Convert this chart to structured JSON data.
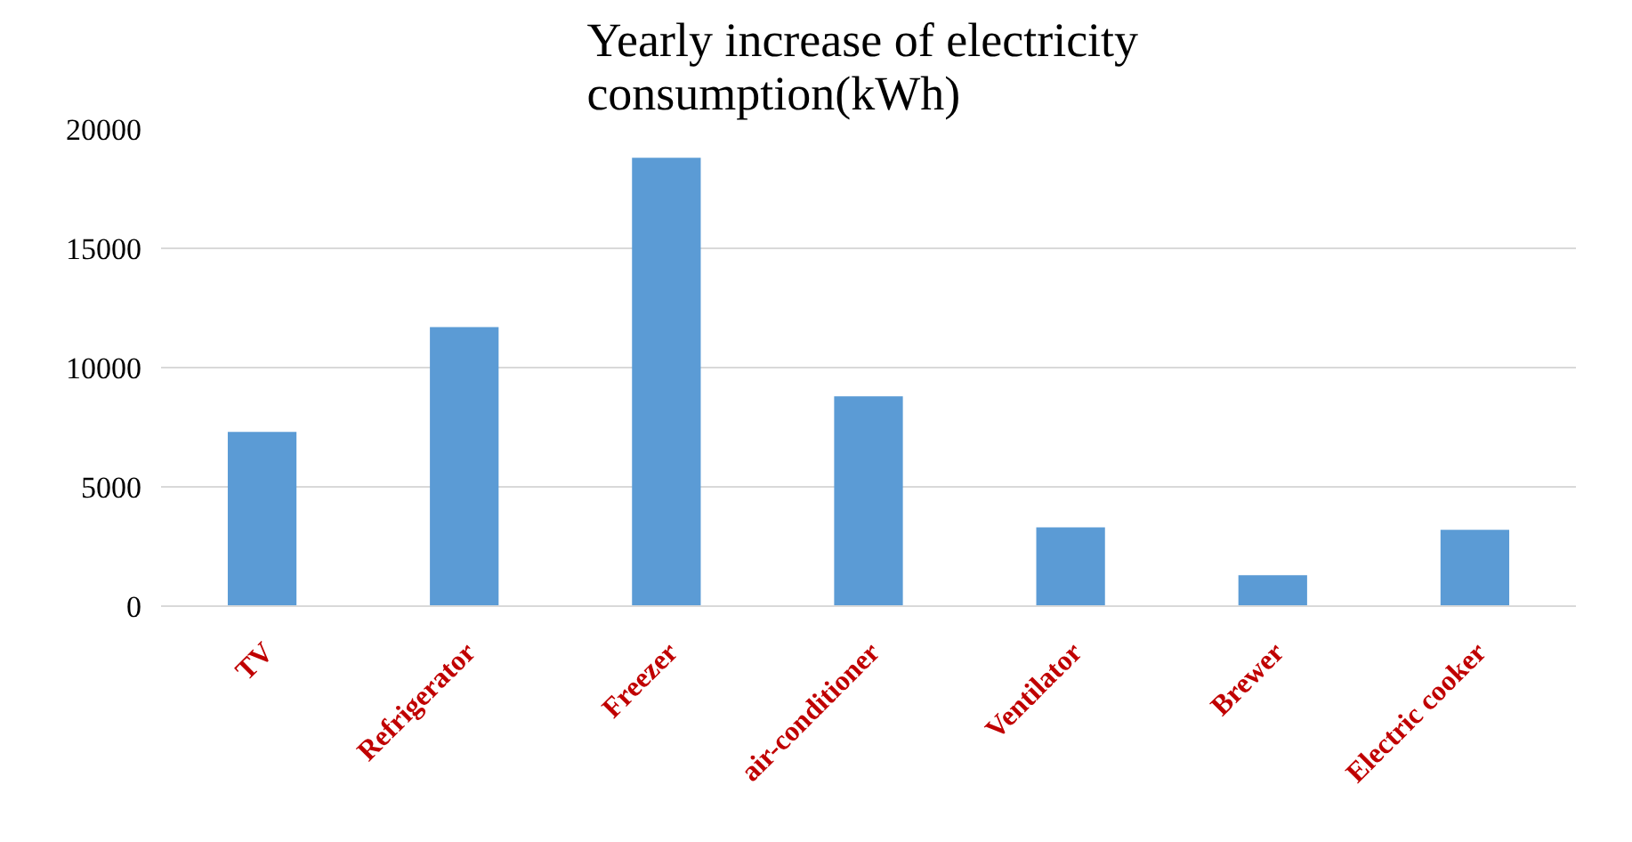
{
  "chart_data": {
    "type": "bar",
    "title": "Yearly  increase of electricity consumption(kWh)",
    "categories": [
      "TV",
      "Refrigerator",
      "Freezer",
      "air-conditioner",
      "Ventilator",
      "Brewer",
      "Electric cooker"
    ],
    "values": [
      7300,
      11700,
      18800,
      8800,
      3300,
      1300,
      3200
    ],
    "color": "#5b9bd5",
    "ylim": [
      0,
      20000
    ],
    "yticks": [
      0,
      5000,
      10000,
      15000,
      20000
    ],
    "grid": "y"
  }
}
